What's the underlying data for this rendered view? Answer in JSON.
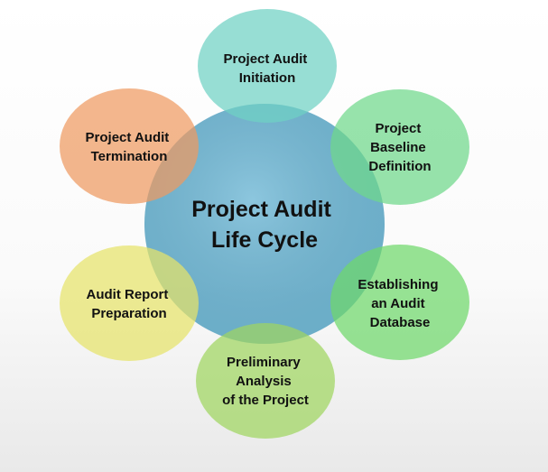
{
  "center": {
    "lines": [
      "Project Audit",
      "Life Cycle"
    ],
    "color": "#5aaed0"
  },
  "stages": [
    {
      "id": "initiation",
      "lines": [
        "Project Audit",
        "Initiation"
      ],
      "color": "#6fd1c3"
    },
    {
      "id": "baseline",
      "lines": [
        "Project",
        "Baseline",
        "Definition"
      ],
      "color": "#6fd88a"
    },
    {
      "id": "database",
      "lines": [
        "Establishing",
        "an Audit",
        "Database"
      ],
      "color": "#6fd86b"
    },
    {
      "id": "preliminary",
      "lines": [
        "Preliminary",
        "Analysis",
        "of the Project"
      ],
      "color": "#9fd65f"
    },
    {
      "id": "report",
      "lines": [
        "Audit Report",
        "Preparation"
      ],
      "color": "#e6e36a"
    },
    {
      "id": "termination",
      "lines": [
        "Project Audit",
        "Termination"
      ],
      "color": "#ee9a61"
    }
  ]
}
